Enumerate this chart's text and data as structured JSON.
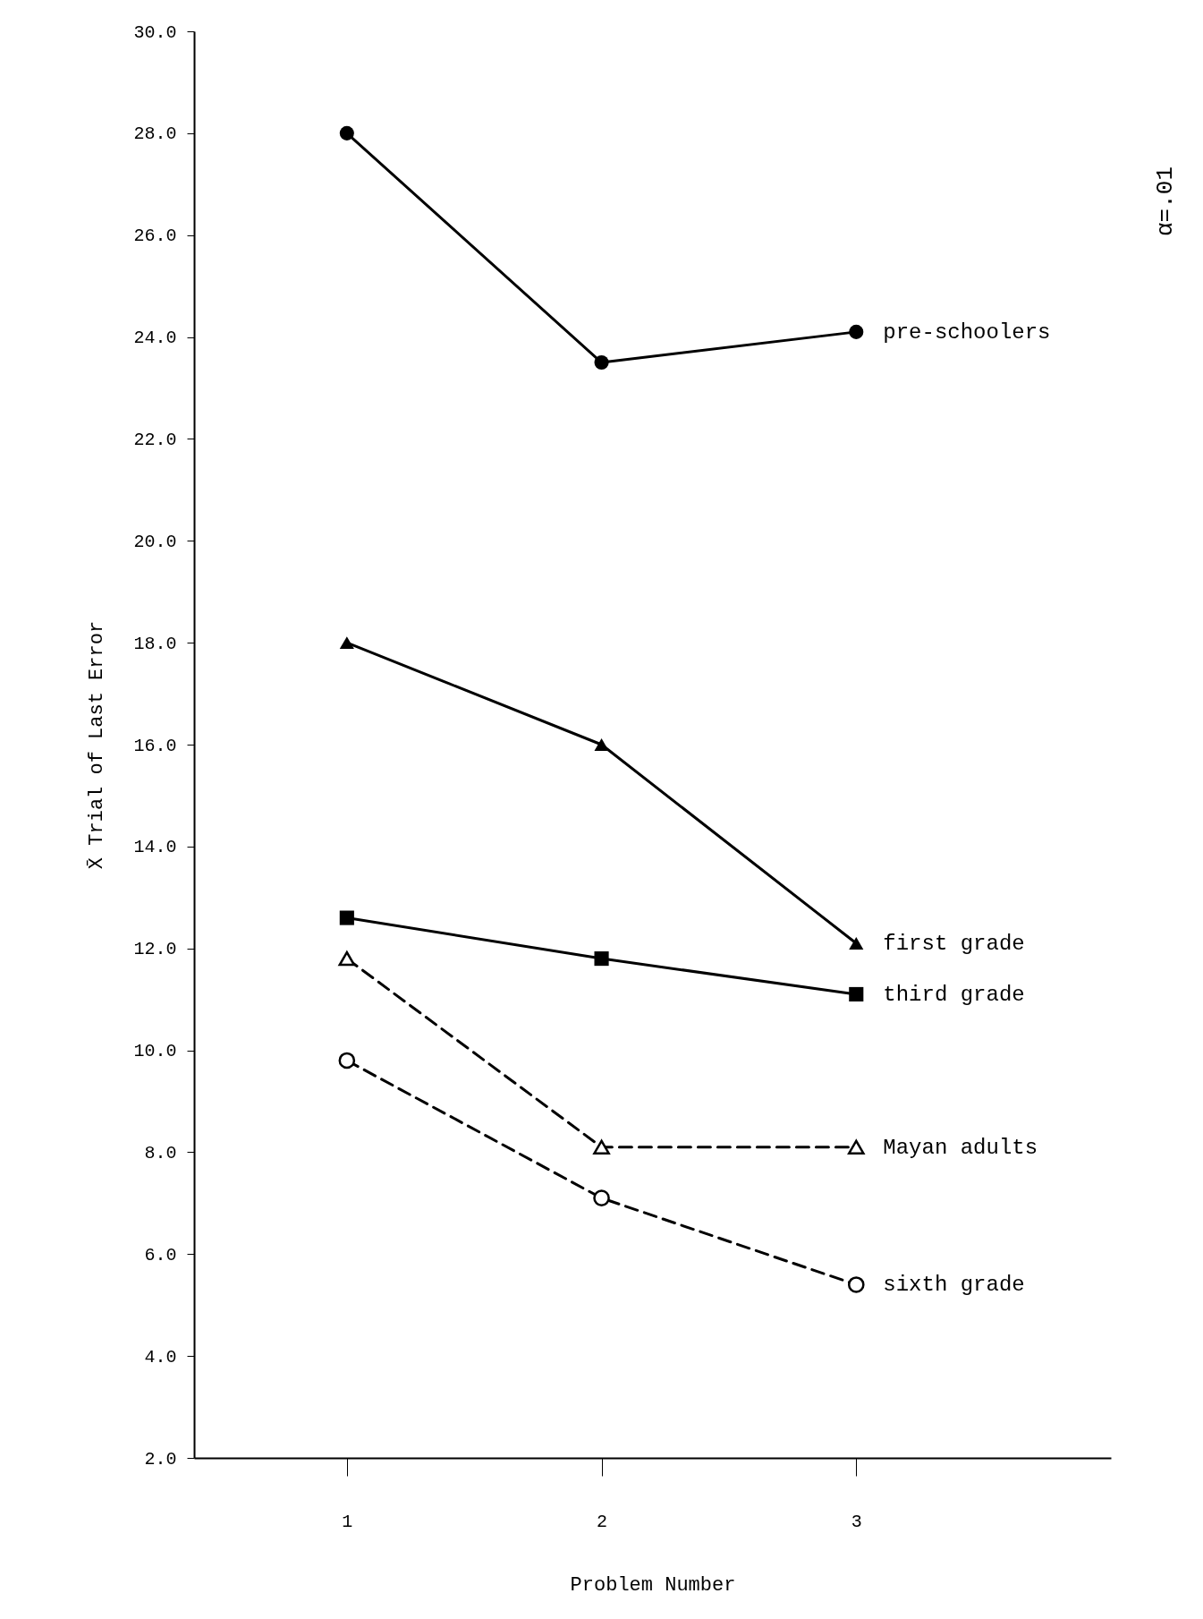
{
  "chart_data": {
    "type": "line",
    "xlabel": "Problem Number",
    "ylabel": "X̄ Trial of Last Error",
    "x": [
      1,
      2,
      3
    ],
    "xlim": [
      0.4,
      4.0
    ],
    "xticks": [
      1,
      2,
      3
    ],
    "ylim": [
      2,
      30
    ],
    "yticks": [
      {
        "value": 2,
        "label": "2.0"
      },
      {
        "value": 4,
        "label": "4.0"
      },
      {
        "value": 6,
        "label": "6.0"
      },
      {
        "value": 8,
        "label": "8.0"
      },
      {
        "value": 10,
        "label": "10.0"
      },
      {
        "value": 12,
        "label": "12.0"
      },
      {
        "value": 14,
        "label": "14.0"
      },
      {
        "value": 16,
        "label": "16.0"
      },
      {
        "value": 18,
        "label": "18.0"
      },
      {
        "value": 20,
        "label": "20.0"
      },
      {
        "value": 22,
        "label": "22.0"
      },
      {
        "value": 24,
        "label": "24.0"
      },
      {
        "value": 26,
        "label": "26.0"
      },
      {
        "value": 28,
        "label": "28.0"
      },
      {
        "value": 30,
        "label": "30.0"
      }
    ],
    "grid": false,
    "series": [
      {
        "name": "pre-schoolers",
        "color": "#000000",
        "marker": "circle",
        "line_style": "solid",
        "values": [
          28.0,
          23.5,
          24.1
        ]
      },
      {
        "name": "first grade",
        "color": "#000000",
        "marker": "triangle",
        "line_style": "solid",
        "values": [
          18.0,
          16.0,
          12.1
        ]
      },
      {
        "name": "third grade",
        "color": "#000000",
        "marker": "square",
        "line_style": "solid",
        "values": [
          12.6,
          11.8,
          11.1
        ]
      },
      {
        "name": "Mayan adults",
        "color": "#000000",
        "marker": "triangle",
        "line_style": "dashed",
        "values": [
          11.8,
          8.1,
          8.1
        ]
      },
      {
        "name": "sixth grade",
        "color": "#000000",
        "marker": "circle",
        "line_style": "dashed",
        "values": [
          9.8,
          7.1,
          5.4
        ]
      }
    ],
    "annotations": [
      "α=.01"
    ]
  }
}
